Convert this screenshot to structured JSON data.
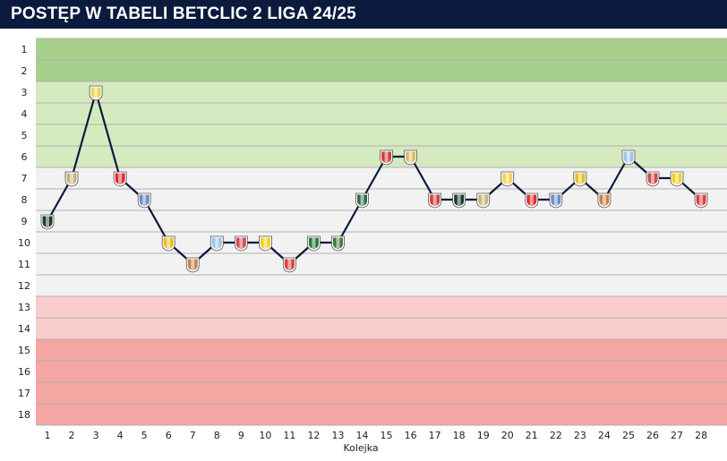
{
  "title": "POSTĘP W TABELI BETCLIC 2 LIGA 24/25",
  "chart_data": {
    "type": "line",
    "xlabel": "Kolejka",
    "ylabel": "",
    "x": [
      1,
      2,
      3,
      4,
      5,
      6,
      7,
      8,
      9,
      10,
      11,
      12,
      13,
      14,
      15,
      16,
      17,
      18,
      19,
      20,
      21,
      22,
      23,
      24,
      25,
      26,
      27,
      28
    ],
    "y_ticks": [
      1,
      2,
      3,
      4,
      5,
      6,
      7,
      8,
      9,
      10,
      11,
      12,
      13,
      14,
      15,
      16,
      17,
      18
    ],
    "ylim": [
      18,
      1
    ],
    "y_inverted": true,
    "series": [
      {
        "values": [
          9,
          7,
          3,
          7,
          8,
          10,
          11,
          10,
          10,
          10,
          11,
          10,
          10,
          8,
          6,
          6,
          8,
          8,
          8,
          7,
          8,
          8,
          7,
          8,
          6,
          7,
          7,
          8
        ]
      }
    ],
    "zones": [
      {
        "from": 1,
        "to": 2,
        "color": "#a8d08d"
      },
      {
        "from": 3,
        "to": 6,
        "color": "#d6eac0"
      },
      {
        "from": 7,
        "to": 12,
        "color": "#f2f2f2"
      },
      {
        "from": 13,
        "to": 14,
        "color": "#f8cdcb"
      },
      {
        "from": 15,
        "to": 18,
        "color": "#f3a6a2"
      }
    ],
    "line_color": "#0c1a3e",
    "marker_colors": [
      "#1f3b2b",
      "#c9b27a",
      "#f2d34f",
      "#e03030",
      "#6b8cc7",
      "#e8c020",
      "#c9824a",
      "#9fc3e8",
      "#d04a4a",
      "#f0d020",
      "#e04040",
      "#2a7a3a",
      "#3f7a3f",
      "#2f6b4a",
      "#d43c3c",
      "#d6b86a",
      "#d43c3c",
      "#1f3b2b",
      "#c9b27a",
      "#f2d34f",
      "#e03030",
      "#6b8cc7",
      "#e8c020",
      "#c9824a",
      "#9fc3e8",
      "#d04a4a",
      "#f0d020",
      "#e04040"
    ]
  }
}
